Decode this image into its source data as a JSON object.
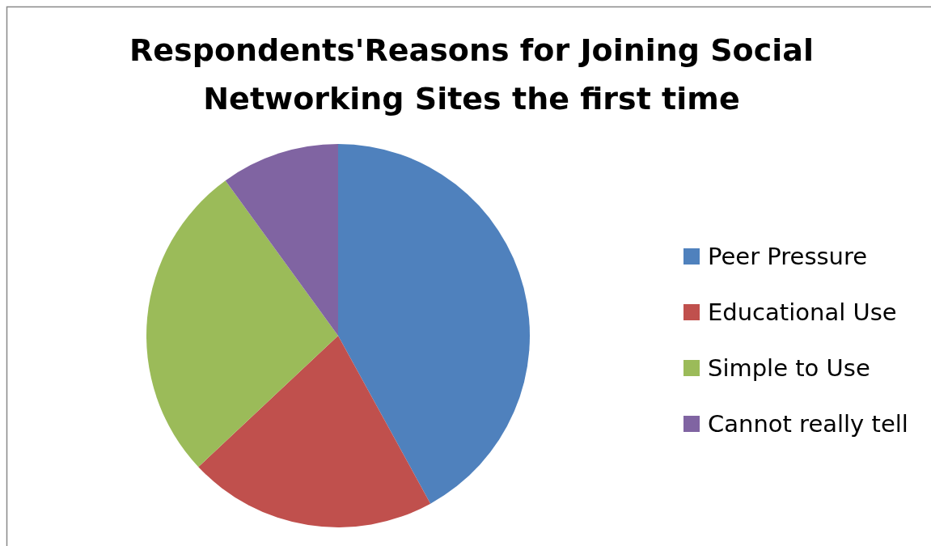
{
  "chart_data": {
    "type": "pie",
    "title": "Respondents'Reasons for Joining Social Networking Sites the first time",
    "categories": [
      "Peer Pressure",
      "Educational Use",
      "Simple to Use",
      "Cannot really tell"
    ],
    "values": [
      42,
      21,
      27,
      10
    ],
    "colors": [
      "#4f81bd",
      "#c0504d",
      "#9bbb59",
      "#8064a2"
    ],
    "legend": "right"
  }
}
